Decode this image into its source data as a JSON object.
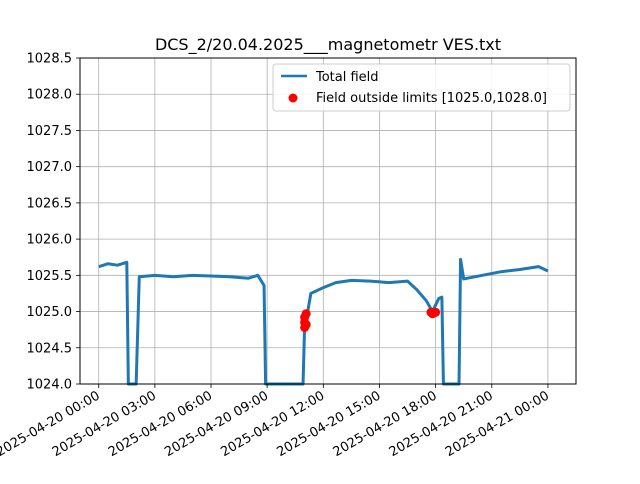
{
  "chart_data": {
    "type": "line",
    "title": "DCS_2/20.04.2025___magnetometr VES.txt",
    "xlabel": "",
    "ylabel": "",
    "xlim": [
      "2025-04-19 23:00",
      "2025-04-21 01:30"
    ],
    "ylim": [
      1024.0,
      1028.5
    ],
    "grid": true,
    "legend_position": "upper right",
    "y_ticks": [
      "1024.0",
      "1024.5",
      "1025.0",
      "1025.5",
      "1026.0",
      "1026.5",
      "1027.0",
      "1027.5",
      "1028.0",
      "1028.5"
    ],
    "x_ticks": [
      "2025-04-20 00:00",
      "2025-04-20 03:00",
      "2025-04-20 06:00",
      "2025-04-20 09:00",
      "2025-04-20 12:00",
      "2025-04-20 15:00",
      "2025-04-20 18:00",
      "2025-04-20 21:00",
      "2025-04-21 00:00"
    ],
    "series": [
      {
        "name": "Total field",
        "color": "#1f77b4",
        "points": [
          [
            "2025-04-20 00:00",
            1025.62
          ],
          [
            "2025-04-20 00:30",
            1025.66
          ],
          [
            "2025-04-20 01:00",
            1025.64
          ],
          [
            "2025-04-20 01:30",
            1025.68
          ],
          [
            "2025-04-20 01:35",
            1024.0
          ],
          [
            "2025-04-20 02:00",
            1024.0
          ],
          [
            "2025-04-20 02:10",
            1025.48
          ],
          [
            "2025-04-20 03:00",
            1025.5
          ],
          [
            "2025-04-20 04:00",
            1025.48
          ],
          [
            "2025-04-20 05:00",
            1025.5
          ],
          [
            "2025-04-20 06:00",
            1025.49
          ],
          [
            "2025-04-20 07:00",
            1025.48
          ],
          [
            "2025-04-20 08:00",
            1025.46
          ],
          [
            "2025-04-20 08:30",
            1025.5
          ],
          [
            "2025-04-20 08:50",
            1025.36
          ],
          [
            "2025-04-20 08:55",
            1024.0
          ],
          [
            "2025-04-20 10:55",
            1024.0
          ],
          [
            "2025-04-20 11:00",
            1024.8
          ],
          [
            "2025-04-20 11:10",
            1025.0
          ],
          [
            "2025-04-20 11:20",
            1025.25
          ],
          [
            "2025-04-20 12:00",
            1025.33
          ],
          [
            "2025-04-20 12:40",
            1025.4
          ],
          [
            "2025-04-20 13:30",
            1025.43
          ],
          [
            "2025-04-20 14:30",
            1025.42
          ],
          [
            "2025-04-20 15:30",
            1025.4
          ],
          [
            "2025-04-20 16:30",
            1025.42
          ],
          [
            "2025-04-20 17:00",
            1025.3
          ],
          [
            "2025-04-20 17:30",
            1025.15
          ],
          [
            "2025-04-20 17:50",
            1025.0
          ],
          [
            "2025-04-20 18:10",
            1025.18
          ],
          [
            "2025-04-20 18:20",
            1025.2
          ],
          [
            "2025-04-20 18:25",
            1024.0
          ],
          [
            "2025-04-20 19:15",
            1024.0
          ],
          [
            "2025-04-20 19:20",
            1025.72
          ],
          [
            "2025-04-20 19:30",
            1025.45
          ],
          [
            "2025-04-20 20:30",
            1025.5
          ],
          [
            "2025-04-20 21:30",
            1025.55
          ],
          [
            "2025-04-20 22:30",
            1025.58
          ],
          [
            "2025-04-20 23:30",
            1025.62
          ],
          [
            "2025-04-21 00:00",
            1025.56
          ]
        ]
      }
    ],
    "outliers": {
      "name": "Field outside limits [1025.0,1028.0]",
      "color": "#ff0000",
      "points": [
        [
          "2025-04-20 11:00",
          1024.78
        ],
        [
          "2025-04-20 11:00",
          1024.85
        ],
        [
          "2025-04-20 11:00",
          1024.92
        ],
        [
          "2025-04-20 11:05",
          1024.97
        ],
        [
          "2025-04-20 11:05",
          1024.82
        ],
        [
          "2025-04-20 17:45",
          1024.99
        ],
        [
          "2025-04-20 17:50",
          1024.97
        ],
        [
          "2025-04-20 17:55",
          1024.98
        ],
        [
          "2025-04-20 18:00",
          1024.99
        ]
      ]
    }
  }
}
